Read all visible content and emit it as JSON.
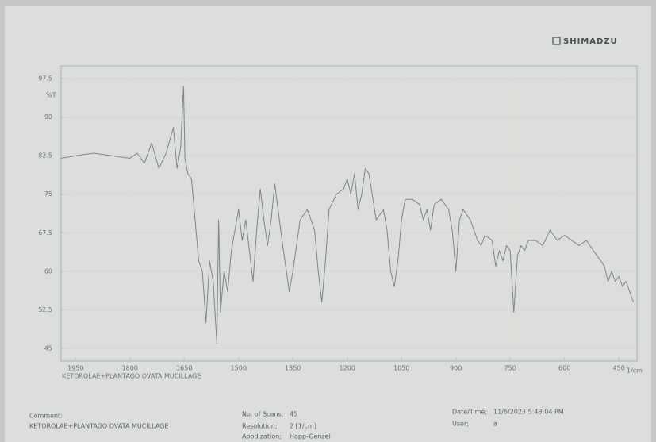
{
  "brand": "SHIMADZU",
  "chart_data": {
    "type": "line",
    "y_label": "%T",
    "x_label": "1/cm",
    "sample_name": "KETOROLAE+PLANTAGO OVATA MUCILLAGE",
    "color": "#80848a",
    "xlim": [
      1990,
      400
    ],
    "xticks": [
      1950,
      1800,
      1650,
      1500,
      1350,
      1200,
      1050,
      900,
      750,
      600,
      450
    ],
    "ylim": [
      42.5,
      100
    ],
    "yticks": [
      97.5,
      90,
      82.5,
      75,
      67.5,
      60,
      52.5,
      45
    ],
    "grid": true,
    "x": [
      1990,
      1950,
      1900,
      1850,
      1800,
      1780,
      1760,
      1740,
      1720,
      1700,
      1680,
      1670,
      1660,
      1652,
      1648,
      1640,
      1630,
      1620,
      1610,
      1600,
      1590,
      1580,
      1570,
      1560,
      1555,
      1550,
      1540,
      1530,
      1520,
      1500,
      1490,
      1480,
      1460,
      1450,
      1440,
      1430,
      1420,
      1410,
      1400,
      1380,
      1360,
      1350,
      1330,
      1310,
      1300,
      1290,
      1280,
      1270,
      1260,
      1250,
      1230,
      1210,
      1200,
      1190,
      1180,
      1170,
      1160,
      1150,
      1140,
      1120,
      1100,
      1090,
      1080,
      1070,
      1060,
      1050,
      1040,
      1020,
      1000,
      990,
      980,
      970,
      960,
      940,
      920,
      910,
      900,
      890,
      880,
      860,
      840,
      830,
      820,
      800,
      790,
      780,
      770,
      760,
      750,
      740,
      730,
      720,
      710,
      700,
      680,
      660,
      640,
      620,
      600,
      580,
      560,
      540,
      520,
      500,
      490,
      480,
      470,
      460,
      450,
      440,
      430,
      420,
      410
    ],
    "values": [
      82,
      82.5,
      83,
      82.5,
      82,
      83,
      81,
      85,
      80,
      83,
      88,
      80,
      84,
      96,
      82,
      79,
      78,
      70,
      62,
      60,
      50,
      62,
      58,
      46,
      70,
      52,
      60,
      56,
      64,
      72,
      66,
      70,
      58,
      68,
      76,
      70,
      65,
      70,
      77,
      66,
      56,
      60,
      70,
      72,
      70,
      68,
      60,
      54,
      62,
      72,
      75,
      76,
      78,
      75,
      79,
      72,
      75,
      80,
      79,
      70,
      72,
      68,
      60,
      57,
      62,
      70,
      74,
      74,
      73,
      70,
      72,
      68,
      73,
      74,
      72,
      68,
      60,
      70,
      72,
      70,
      66,
      65,
      67,
      66,
      61,
      64,
      62,
      65,
      64,
      52,
      63,
      65,
      64,
      66,
      66,
      65,
      68,
      66,
      67,
      66,
      65,
      66,
      64,
      62,
      61,
      58,
      60,
      58,
      59,
      57,
      58,
      56,
      54
    ]
  },
  "footer": {
    "comment_label": "Comment:",
    "comment": "KETOROLAE+PLANTAGO OVATA MUCILLAGE",
    "scans_label": "No. of Scans;",
    "scans": "45",
    "resolution_label": "Resolution;",
    "resolution": "2 [1/cm]",
    "apodization_label": "Apodization;",
    "apodization": "Happ-Genzel",
    "datetime_label": "Date/Time;",
    "datetime": "11/6/2023 5:43:04 PM",
    "user_label": "User;",
    "user": "a"
  }
}
